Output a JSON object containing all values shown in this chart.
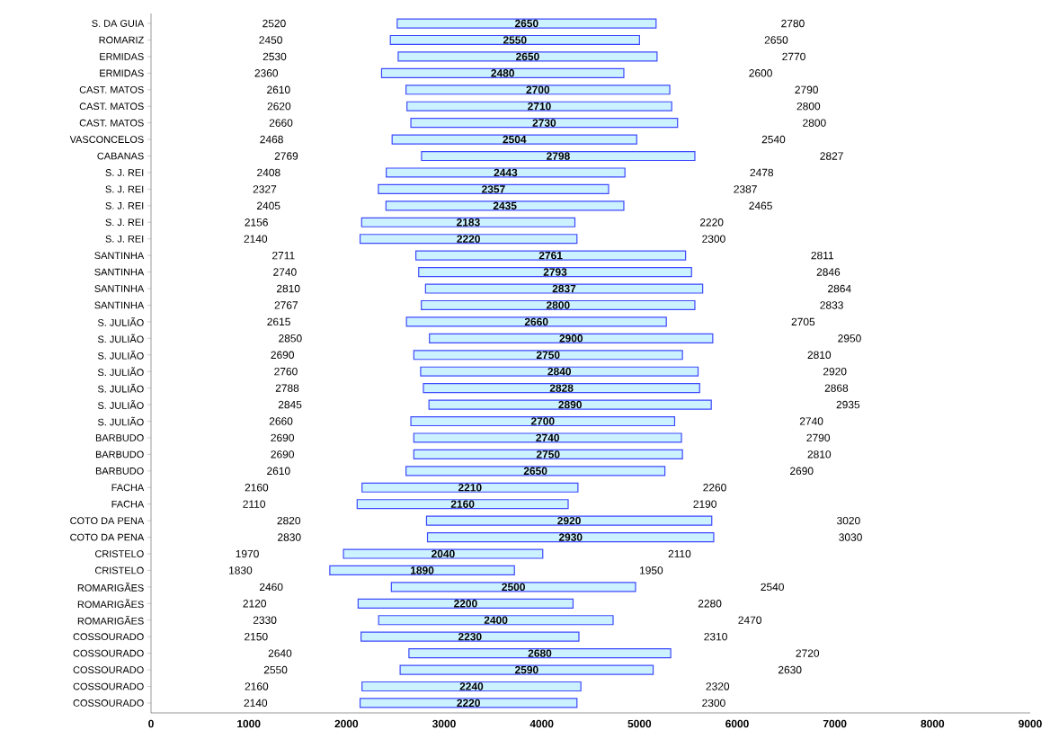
{
  "chart_data": {
    "type": "bar",
    "orientation": "horizontal",
    "data_labels": true,
    "xlim": [
      0,
      9000
    ],
    "xticks": [
      0,
      1000,
      2000,
      3000,
      4000,
      5000,
      6000,
      7000,
      8000,
      9000
    ],
    "categories": [
      "S. DA GUIA",
      "ROMARIZ",
      "ERMIDAS",
      "ERMIDAS",
      "CAST. MATOS",
      "CAST. MATOS",
      "CAST. MATOS",
      "VASCONCELOS",
      "CABANAS",
      "S. J. REI",
      "S. J. REI",
      "S. J. REI",
      "S. J. REI",
      "S. J. REI",
      "SANTINHA",
      "SANTINHA",
      "SANTINHA",
      "SANTINHA",
      "S. JULIÃO",
      "S. JULIÃO",
      "S. JULIÃO",
      "S. JULIÃO",
      "S. JULIÃO",
      "S. JULIÃO",
      "S. JULIÃO",
      "BARBUDO",
      "BARBUDO",
      "BARBUDO",
      "FACHA",
      "FACHA",
      "COTO DA PENA",
      "COTO DA PENA",
      "CRISTELO",
      "CRISTELO",
      "ROMARIGÃES",
      "ROMARIGÃES",
      "ROMARIGÃES",
      "COSSOURADO",
      "COSSOURADO",
      "COSSOURADO",
      "COSSOURADO",
      "COSSOURADO"
    ],
    "base": [
      2520,
      2450,
      2530,
      2360,
      2610,
      2620,
      2660,
      2468,
      2769,
      2408,
      2327,
      2405,
      2156,
      2140,
      2711,
      2740,
      2810,
      2767,
      2615,
      2850,
      2690,
      2760,
      2788,
      2845,
      2660,
      2690,
      2690,
      2610,
      2160,
      2110,
      2820,
      2830,
      1970,
      1830,
      2460,
      2120,
      2330,
      2150,
      2640,
      2550,
      2160,
      2140
    ],
    "values": [
      2650,
      2550,
      2650,
      2480,
      2700,
      2710,
      2730,
      2504,
      2798,
      2443,
      2357,
      2435,
      2183,
      2220,
      2761,
      2793,
      2837,
      2800,
      2660,
      2900,
      2750,
      2840,
      2828,
      2890,
      2700,
      2740,
      2750,
      2650,
      2210,
      2160,
      2920,
      2930,
      2040,
      1890,
      2500,
      2200,
      2400,
      2230,
      2680,
      2590,
      2240,
      2220
    ],
    "color": "#ccf2ff",
    "annotations": [
      "2520",
      "2780",
      "2450",
      "2650",
      "2530",
      "2770",
      "2360",
      "2600",
      "2610",
      "2790",
      "2620",
      "2800",
      "2660",
      "2800",
      "2468",
      "2540",
      "2769",
      "2827",
      "2408",
      "2478",
      "2327",
      "2387",
      "2405",
      "2465",
      "2156",
      "2220",
      "2140",
      "2300",
      "2711",
      "2811",
      "2740",
      "2846",
      "2810",
      "2864",
      "2767",
      "2833",
      "2615",
      "2705",
      "2850",
      "2950",
      "2690",
      "2810",
      "2760",
      "2920",
      "2788",
      "2868",
      "2845",
      "2935",
      "2660",
      "2740",
      "2690",
      "2790",
      "2690",
      "2810",
      "2610",
      "2690",
      "2160",
      "2260",
      "2110",
      "2190",
      "2820",
      "3020",
      "2830",
      "3030",
      "1970",
      "2110",
      "1830",
      "1950",
      "2460",
      "2540",
      "2120",
      "2280",
      "2330",
      "2470",
      "2150",
      "2310",
      "2640",
      "2720",
      "2550",
      "2630",
      "2160",
      "2320",
      "2140",
      "2300"
    ]
  }
}
